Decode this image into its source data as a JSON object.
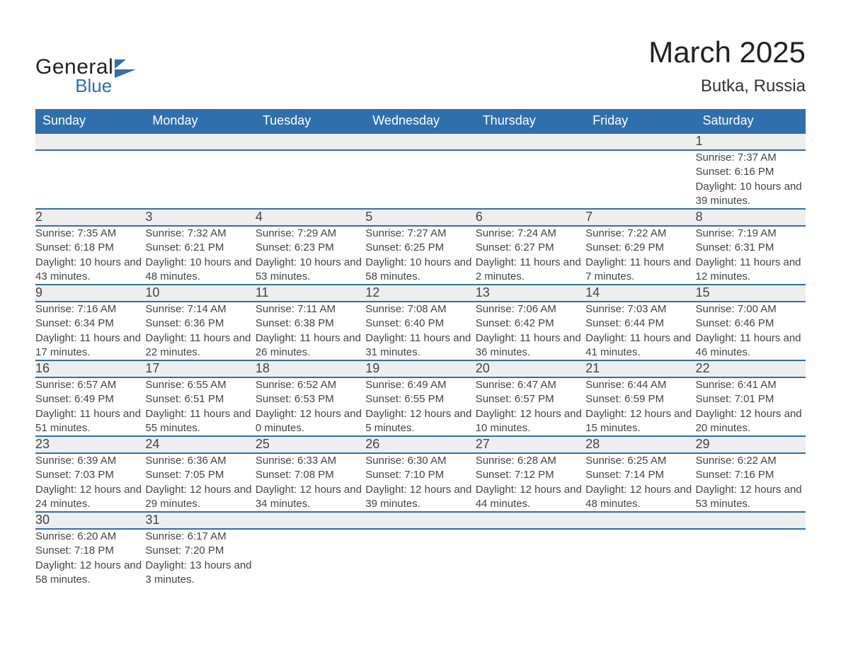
{
  "brand": {
    "line1": "General",
    "line2": "Blue",
    "mark_color": "#2f6fae"
  },
  "title": "March 2025",
  "location": "Butka, Russia",
  "colors": {
    "header_bg": "#2f6fae",
    "header_fg": "#ffffff",
    "daynum_bg": "#eeeeee",
    "row_border": "#2f6fae",
    "text": "#444444",
    "background": "#ffffff"
  },
  "typography": {
    "title_fontsize": 42,
    "location_fontsize": 24,
    "dayheader_fontsize": 18,
    "daynum_fontsize": 18,
    "detail_fontsize": 15,
    "font_family": "Arial"
  },
  "day_headers": [
    "Sunday",
    "Monday",
    "Tuesday",
    "Wednesday",
    "Thursday",
    "Friday",
    "Saturday"
  ],
  "weeks": [
    [
      null,
      null,
      null,
      null,
      null,
      null,
      {
        "n": "1",
        "sunrise": "7:37 AM",
        "sunset": "6:16 PM",
        "day_h": 10,
        "day_m": 39
      }
    ],
    [
      {
        "n": "2",
        "sunrise": "7:35 AM",
        "sunset": "6:18 PM",
        "day_h": 10,
        "day_m": 43
      },
      {
        "n": "3",
        "sunrise": "7:32 AM",
        "sunset": "6:21 PM",
        "day_h": 10,
        "day_m": 48
      },
      {
        "n": "4",
        "sunrise": "7:29 AM",
        "sunset": "6:23 PM",
        "day_h": 10,
        "day_m": 53
      },
      {
        "n": "5",
        "sunrise": "7:27 AM",
        "sunset": "6:25 PM",
        "day_h": 10,
        "day_m": 58
      },
      {
        "n": "6",
        "sunrise": "7:24 AM",
        "sunset": "6:27 PM",
        "day_h": 11,
        "day_m": 2
      },
      {
        "n": "7",
        "sunrise": "7:22 AM",
        "sunset": "6:29 PM",
        "day_h": 11,
        "day_m": 7
      },
      {
        "n": "8",
        "sunrise": "7:19 AM",
        "sunset": "6:31 PM",
        "day_h": 11,
        "day_m": 12
      }
    ],
    [
      {
        "n": "9",
        "sunrise": "7:16 AM",
        "sunset": "6:34 PM",
        "day_h": 11,
        "day_m": 17
      },
      {
        "n": "10",
        "sunrise": "7:14 AM",
        "sunset": "6:36 PM",
        "day_h": 11,
        "day_m": 22
      },
      {
        "n": "11",
        "sunrise": "7:11 AM",
        "sunset": "6:38 PM",
        "day_h": 11,
        "day_m": 26
      },
      {
        "n": "12",
        "sunrise": "7:08 AM",
        "sunset": "6:40 PM",
        "day_h": 11,
        "day_m": 31
      },
      {
        "n": "13",
        "sunrise": "7:06 AM",
        "sunset": "6:42 PM",
        "day_h": 11,
        "day_m": 36
      },
      {
        "n": "14",
        "sunrise": "7:03 AM",
        "sunset": "6:44 PM",
        "day_h": 11,
        "day_m": 41
      },
      {
        "n": "15",
        "sunrise": "7:00 AM",
        "sunset": "6:46 PM",
        "day_h": 11,
        "day_m": 46
      }
    ],
    [
      {
        "n": "16",
        "sunrise": "6:57 AM",
        "sunset": "6:49 PM",
        "day_h": 11,
        "day_m": 51
      },
      {
        "n": "17",
        "sunrise": "6:55 AM",
        "sunset": "6:51 PM",
        "day_h": 11,
        "day_m": 55
      },
      {
        "n": "18",
        "sunrise": "6:52 AM",
        "sunset": "6:53 PM",
        "day_h": 12,
        "day_m": 0
      },
      {
        "n": "19",
        "sunrise": "6:49 AM",
        "sunset": "6:55 PM",
        "day_h": 12,
        "day_m": 5
      },
      {
        "n": "20",
        "sunrise": "6:47 AM",
        "sunset": "6:57 PM",
        "day_h": 12,
        "day_m": 10
      },
      {
        "n": "21",
        "sunrise": "6:44 AM",
        "sunset": "6:59 PM",
        "day_h": 12,
        "day_m": 15
      },
      {
        "n": "22",
        "sunrise": "6:41 AM",
        "sunset": "7:01 PM",
        "day_h": 12,
        "day_m": 20
      }
    ],
    [
      {
        "n": "23",
        "sunrise": "6:39 AM",
        "sunset": "7:03 PM",
        "day_h": 12,
        "day_m": 24
      },
      {
        "n": "24",
        "sunrise": "6:36 AM",
        "sunset": "7:05 PM",
        "day_h": 12,
        "day_m": 29
      },
      {
        "n": "25",
        "sunrise": "6:33 AM",
        "sunset": "7:08 PM",
        "day_h": 12,
        "day_m": 34
      },
      {
        "n": "26",
        "sunrise": "6:30 AM",
        "sunset": "7:10 PM",
        "day_h": 12,
        "day_m": 39
      },
      {
        "n": "27",
        "sunrise": "6:28 AM",
        "sunset": "7:12 PM",
        "day_h": 12,
        "day_m": 44
      },
      {
        "n": "28",
        "sunrise": "6:25 AM",
        "sunset": "7:14 PM",
        "day_h": 12,
        "day_m": 48
      },
      {
        "n": "29",
        "sunrise": "6:22 AM",
        "sunset": "7:16 PM",
        "day_h": 12,
        "day_m": 53
      }
    ],
    [
      {
        "n": "30",
        "sunrise": "6:20 AM",
        "sunset": "7:18 PM",
        "day_h": 12,
        "day_m": 58
      },
      {
        "n": "31",
        "sunrise": "6:17 AM",
        "sunset": "7:20 PM",
        "day_h": 13,
        "day_m": 3
      },
      null,
      null,
      null,
      null,
      null
    ]
  ],
  "labels": {
    "sunrise": "Sunrise:",
    "sunset": "Sunset:",
    "daylight": "Daylight:",
    "hours": "hours",
    "and": "and",
    "minutes": "minutes."
  }
}
